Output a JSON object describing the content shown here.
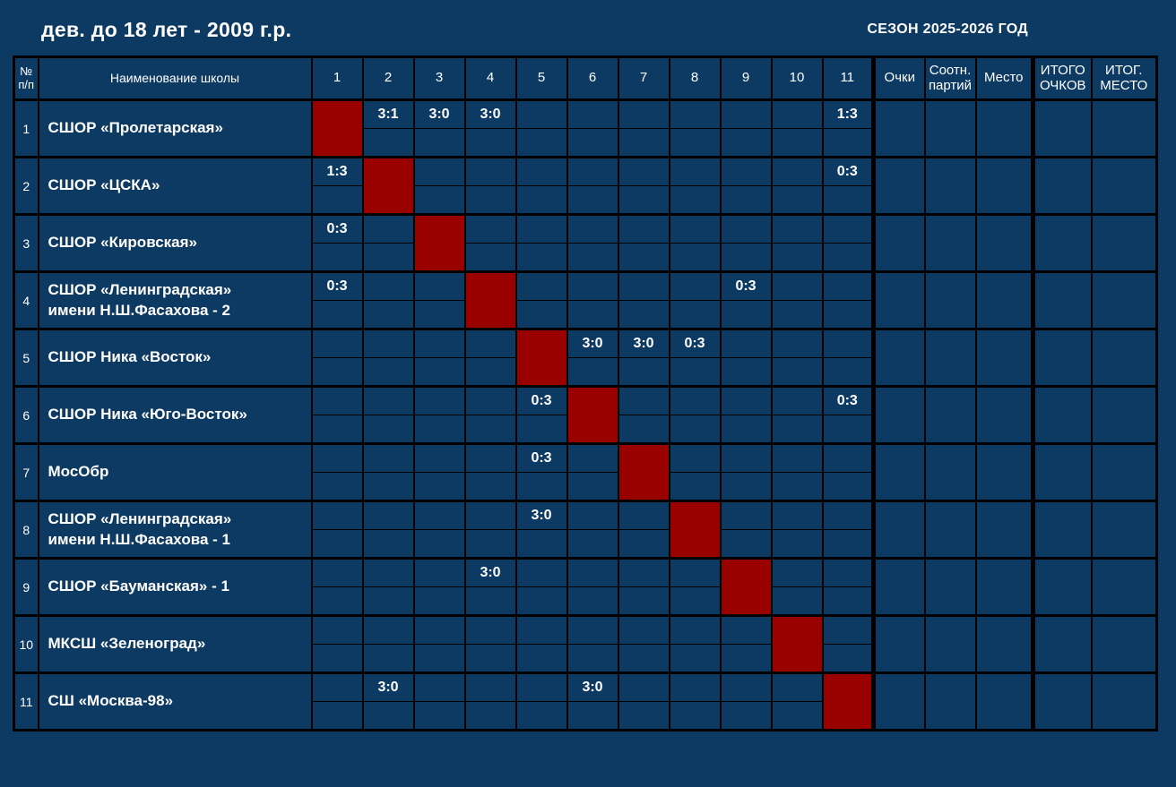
{
  "page": {
    "title": "дев. до 18 лет - 2009 г.р.",
    "season": "СЕЗОН 2025-2026 ГОД"
  },
  "colors": {
    "background": "#0d3a63",
    "cell": "#0d3a63",
    "diagonal": "#990000",
    "grid": "#000000",
    "text": "#ffffff"
  },
  "table": {
    "headers": {
      "index": "№ п/п",
      "school": "Наименование школы",
      "rounds": [
        "1",
        "2",
        "3",
        "4",
        "5",
        "6",
        "7",
        "8",
        "9",
        "10",
        "11"
      ],
      "points": "Очки",
      "set_ratio": "Соотн. партий",
      "place": "Место",
      "total_points": "ИТОГО ОЧКОВ",
      "final_place": "ИТОГ. МЕСТО"
    },
    "rows": [
      {
        "index": "1",
        "school": "СШОР «Пролетарская»",
        "results": [
          null,
          "3:1",
          "3:0",
          "3:0",
          "",
          "",
          "",
          "",
          "",
          "",
          "1:3"
        ],
        "points": "",
        "set_ratio": "",
        "place": "",
        "total_points": "",
        "final_place": ""
      },
      {
        "index": "2",
        "school": "СШОР «ЦСКА»",
        "results": [
          "1:3",
          null,
          "",
          "",
          "",
          "",
          "",
          "",
          "",
          "",
          "0:3"
        ],
        "points": "",
        "set_ratio": "",
        "place": "",
        "total_points": "",
        "final_place": ""
      },
      {
        "index": "3",
        "school": "СШОР «Кировская»",
        "results": [
          "0:3",
          "",
          null,
          "",
          "",
          "",
          "",
          "",
          "",
          "",
          ""
        ],
        "points": "",
        "set_ratio": "",
        "place": "",
        "total_points": "",
        "final_place": ""
      },
      {
        "index": "4",
        "school": "СШОР «Ленинградская»\nимени Н.Ш.Фасахова - 2",
        "results": [
          "0:3",
          "",
          "",
          null,
          "",
          "",
          "",
          "",
          "0:3",
          "",
          ""
        ],
        "points": "",
        "set_ratio": "",
        "place": "",
        "total_points": "",
        "final_place": ""
      },
      {
        "index": "5",
        "school": "СШОР Ника «Восток»",
        "results": [
          "",
          "",
          "",
          "",
          null,
          "3:0",
          "3:0",
          "0:3",
          "",
          "",
          ""
        ],
        "points": "",
        "set_ratio": "",
        "place": "",
        "total_points": "",
        "final_place": ""
      },
      {
        "index": "6",
        "school": "СШОР Ника «Юго-Восток»",
        "results": [
          "",
          "",
          "",
          "",
          "0:3",
          null,
          "",
          "",
          "",
          "",
          "0:3"
        ],
        "points": "",
        "set_ratio": "",
        "place": "",
        "total_points": "",
        "final_place": ""
      },
      {
        "index": "7",
        "school": "МосОбр",
        "results": [
          "",
          "",
          "",
          "",
          "0:3",
          "",
          null,
          "",
          "",
          "",
          ""
        ],
        "points": "",
        "set_ratio": "",
        "place": "",
        "total_points": "",
        "final_place": ""
      },
      {
        "index": "8",
        "school": "СШОР «Ленинградская»\nимени Н.Ш.Фасахова - 1",
        "results": [
          "",
          "",
          "",
          "",
          "3:0",
          "",
          "",
          null,
          "",
          "",
          ""
        ],
        "points": "",
        "set_ratio": "",
        "place": "",
        "total_points": "",
        "final_place": ""
      },
      {
        "index": "9",
        "school": "СШОР «Бауманская» - 1",
        "results": [
          "",
          "",
          "",
          "3:0",
          "",
          "",
          "",
          "",
          null,
          "",
          ""
        ],
        "points": "",
        "set_ratio": "",
        "place": "",
        "total_points": "",
        "final_place": ""
      },
      {
        "index": "10",
        "school": "МКСШ «Зеленоград»",
        "results": [
          "",
          "",
          "",
          "",
          "",
          "",
          "",
          "",
          "",
          null,
          ""
        ],
        "points": "",
        "set_ratio": "",
        "place": "",
        "total_points": "",
        "final_place": ""
      },
      {
        "index": "11",
        "school": "СШ «Москва-98»",
        "results": [
          "",
          "3:0",
          "",
          "",
          "",
          "3:0",
          "",
          "",
          "",
          "",
          null
        ],
        "points": "",
        "set_ratio": "",
        "place": "",
        "total_points": "",
        "final_place": ""
      }
    ]
  }
}
